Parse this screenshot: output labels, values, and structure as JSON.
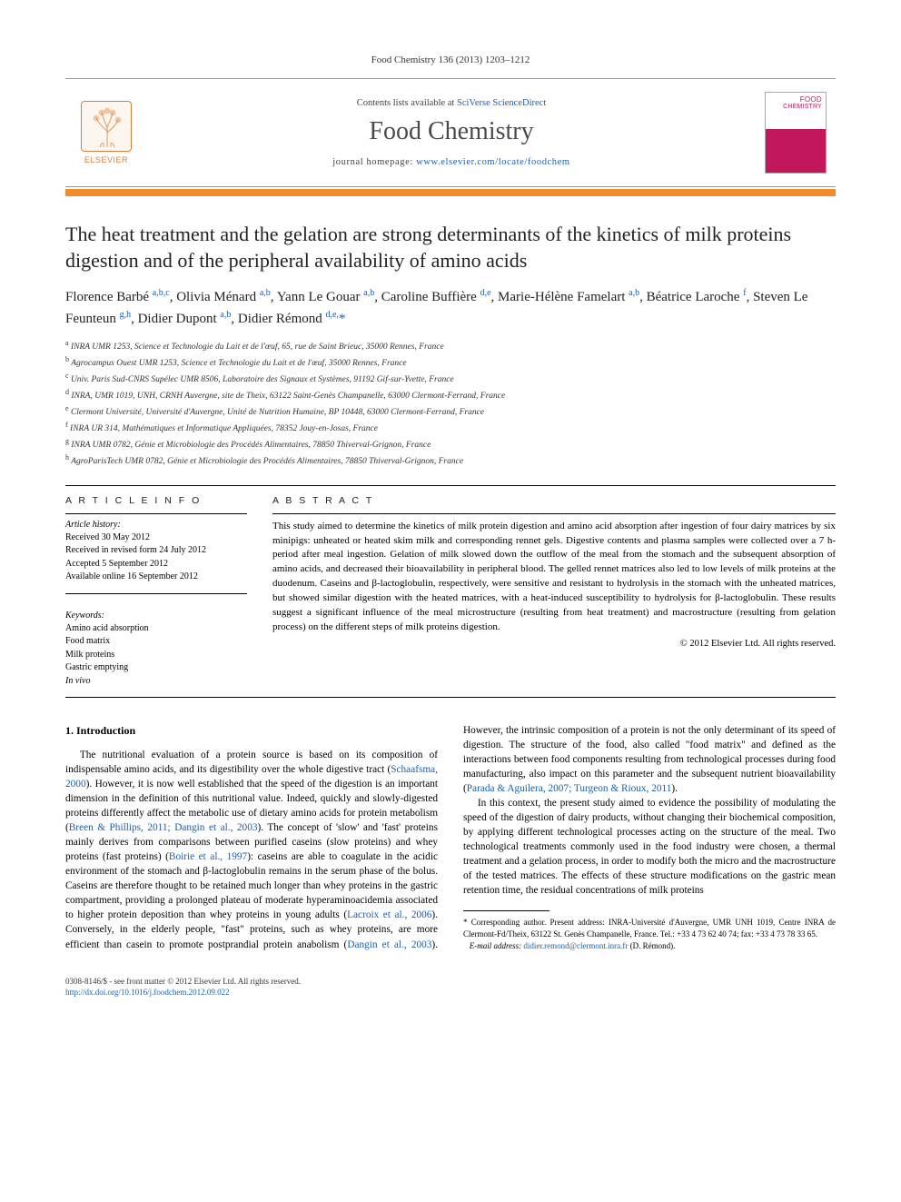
{
  "header": {
    "journal_ref": "Food Chemistry 136 (2013) 1203–1212",
    "contents_prefix": "Contents lists available at ",
    "contents_link": "SciVerse ScienceDirect",
    "journal_name": "Food Chemistry",
    "homepage_prefix": "journal homepage: ",
    "homepage_link": "www.elsevier.com/locate/foodchem",
    "elsevier_label": "ELSEVIER",
    "cover_text_1": "FOOD",
    "cover_text_2": "CHEMISTRY"
  },
  "colors": {
    "orange_bar": "#f28c28",
    "link": "#1a5fb4",
    "elsevier_orange": "#d97f3c",
    "cover_pink": "#c2185b"
  },
  "title": "The heat treatment and the gelation are strong determinants of the kinetics of milk proteins digestion and of the peripheral availability of amino acids",
  "authors_html": "Florence Barbé <sup>a,b,c</sup>, Olivia Ménard <sup>a,b</sup>, Yann Le Gouar <sup>a,b</sup>, Caroline Buffière <sup>d,e</sup>, Marie-Hélène Famelart <sup>a,b</sup>, Béatrice Laroche <sup>f</sup>, Steven Le Feunteun <sup>g,h</sup>, Didier Dupont <sup>a,b</sup>, Didier Rémond <sup>d,e,</sup><span class='star'>*</span>",
  "affiliations": [
    "a|INRA UMR 1253, Science et Technologie du Lait et de l'œuf, 65, rue de Saint Brieuc, 35000 Rennes, France",
    "b|Agrocampus Ouest UMR 1253, Science et Technologie du Lait et de l'œuf, 35000 Rennes, France",
    "c|Univ. Paris Sud-CNRS Supélec UMR 8506, Laboratoire des Signaux et Systèmes, 91192 Gif-sur-Yvette, France",
    "d|INRA, UMR 1019, UNH, CRNH Auvergne, site de Theix, 63122 Saint-Genès Champanelle, 63000 Clermont-Ferrand, France",
    "e|Clermont Université, Université d'Auvergne, Unité de Nutrition Humaine, BP 10448, 63000 Clermont-Ferrand, France",
    "f|INRA UR 314, Mathématiques et Informatique Appliquées, 78352 Jouy-en-Josas, France",
    "g|INRA UMR 0782, Génie et Microbiologie des Procédés Alimentaires, 78850 Thiverval-Grignon, France",
    "h|AgroParisTech UMR 0782, Génie et Microbiologie des Procédés Alimentaires, 78850 Thiverval-Grignon, France"
  ],
  "article_info": {
    "heading": "A R T I C L E   I N F O",
    "history_head": "Article history:",
    "history": [
      "Received 30 May 2012",
      "Received in revised form 24 July 2012",
      "Accepted 5 September 2012",
      "Available online 16 September 2012"
    ],
    "keywords_head": "Keywords:",
    "keywords": [
      "Amino acid absorption",
      "Food matrix",
      "Milk proteins",
      "Gastric emptying",
      "In vivo"
    ]
  },
  "abstract": {
    "heading": "A B S T R A C T",
    "text": "This study aimed to determine the kinetics of milk protein digestion and amino acid absorption after ingestion of four dairy matrices by six minipigs: unheated or heated skim milk and corresponding rennet gels. Digestive contents and plasma samples were collected over a 7 h-period after meal ingestion. Gelation of milk slowed down the outflow of the meal from the stomach and the subsequent absorption of amino acids, and decreased their bioavailability in peripheral blood. The gelled rennet matrices also led to low levels of milk proteins at the duodenum. Caseins and β-lactoglobulin, respectively, were sensitive and resistant to hydrolysis in the stomach with the unheated matrices, but showed similar digestion with the heated matrices, with a heat-induced susceptibility to hydrolysis for β-lactoglobulin. These results suggest a significant influence of the meal microstructure (resulting from heat treatment) and macrostructure (resulting from gelation process) on the different steps of milk proteins digestion.",
    "copyright": "© 2012 Elsevier Ltd. All rights reserved."
  },
  "intro": {
    "heading": "1. Introduction",
    "para1_a": "The nutritional evaluation of a protein source is based on its composition of indispensable amino acids, and its digestibility over the whole digestive tract (",
    "ref1": "Schaafsma, 2000",
    "para1_b": "). However, it is now well established that the speed of the digestion is an important dimension in the definition of this nutritional value. Indeed, quickly and slowly-digested proteins differently affect the metabolic use of dietary amino acids for protein metabolism (",
    "ref2": "Breen & Phillips, 2011; Dangin et al., 2003",
    "para1_c": "). The concept of 'slow' and 'fast' proteins mainly derives from comparisons between purified caseins (slow proteins) and whey proteins (fast proteins) (",
    "ref3": "Boirie et al., 1997",
    "para1_d": "): caseins are able to coagulate in the acidic environment of the stomach and β-lactoglobulin remains in the serum phase of the bolus. Caseins are therefore thought to be retained much longer than whey proteins in the gastric compartment, providing a prolonged plateau of moderate hyperaminoacidemia associated to higher protein deposition than whey proteins in young adults (",
    "ref4": "Lacroix et al., 2006",
    "para1_e": "). Conversely, in the elderly people, \"fast\" proteins, such as whey proteins, are more efficient than casein to promote postprandial protein anabolism (",
    "ref5": "Dangin et al., 2003",
    "para1_f": "). However, the intrinsic composition of a protein is not the only determinant of its speed of digestion. The structure of the food, also called \"food matrix\" and defined as the interactions between food components resulting from technological processes during food manufacturing, also impact on this parameter and the subsequent nutrient bioavailability (",
    "ref6": "Parada & Aguilera, 2007; Turgeon & Rioux, 2011",
    "para1_g": ").",
    "para2": "In this context, the present study aimed to evidence the possibility of modulating the speed of the digestion of dairy products, without changing their biochemical composition, by applying different technological processes acting on the structure of the meal. Two technological treatments commonly used in the food industry were chosen, a thermal treatment and a gelation process, in order to modify both the micro and the macrostructure of the tested matrices. The effects of these structure modifications on the gastric mean retention time, the residual concentrations of milk proteins"
  },
  "corresponding": {
    "star": "*",
    "label": "Corresponding author. Present address: INRA-Université d'Auvergne, UMR UNH 1019, Centre INRA de Clermont-Fd/Theix, 63122 St. Genès Champanelle, France. Tel.: +33 4 73 62 40 74; fax: +33 4 73 78 33 65.",
    "email_label": "E-mail address: ",
    "email": "didier.remond@clermont.inra.fr",
    "email_suffix": " (D. Rémond)."
  },
  "footer": {
    "line1": "0308-8146/$ - see front matter © 2012 Elsevier Ltd. All rights reserved.",
    "doi_link": "http://dx.doi.org/10.1016/j.foodchem.2012.09.022"
  }
}
